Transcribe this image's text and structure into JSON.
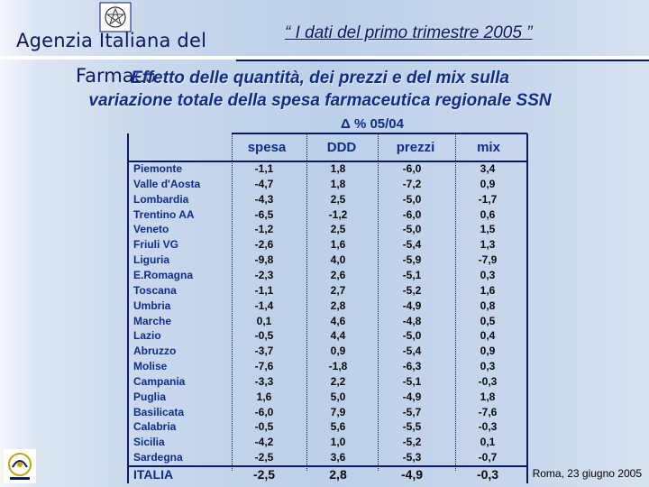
{
  "header": {
    "agency_line1": "Agenzia Italiana del",
    "agency_line2": "Farmaco",
    "presentation_title": "“ I dati del primo trimestre 2005 ”"
  },
  "slide": {
    "title_line1": "Effetto delle quantità, dei prezzi e del mix sulla",
    "title_line2": "variazione totale della spesa farmaceutica regionale SSN",
    "delta_label": "Δ % 05/04"
  },
  "table": {
    "columns": [
      "spesa",
      "DDD",
      "prezzi",
      "mix"
    ],
    "rows": [
      {
        "region": "Piemonte",
        "values": [
          "-1,1",
          "1,8",
          "-6,0",
          "3,4"
        ]
      },
      {
        "region": "Valle d'Aosta",
        "values": [
          "-4,7",
          "1,8",
          "-7,2",
          "0,9"
        ]
      },
      {
        "region": "Lombardia",
        "values": [
          "-4,3",
          "2,5",
          "-5,0",
          "-1,7"
        ]
      },
      {
        "region": "Trentino AA",
        "values": [
          "-6,5",
          "-1,2",
          "-6,0",
          "0,6"
        ]
      },
      {
        "region": "Veneto",
        "values": [
          "-1,2",
          "2,5",
          "-5,0",
          "1,5"
        ]
      },
      {
        "region": "Friuli VG",
        "values": [
          "-2,6",
          "1,6",
          "-5,4",
          "1,3"
        ]
      },
      {
        "region": "Liguria",
        "values": [
          "-9,8",
          "4,0",
          "-5,9",
          "-7,9"
        ]
      },
      {
        "region": "E.Romagna",
        "values": [
          "-2,3",
          "2,6",
          "-5,1",
          "0,3"
        ]
      },
      {
        "region": "Toscana",
        "values": [
          "-1,1",
          "2,7",
          "-5,2",
          "1,6"
        ]
      },
      {
        "region": "Umbria",
        "values": [
          "-1,4",
          "2,8",
          "-4,9",
          "0,8"
        ]
      },
      {
        "region": "Marche",
        "values": [
          "0,1",
          "4,6",
          "-4,8",
          "0,5"
        ]
      },
      {
        "region": "Lazio",
        "values": [
          "-0,5",
          "4,4",
          "-5,0",
          "0,4"
        ]
      },
      {
        "region": "Abruzzo",
        "values": [
          "-3,7",
          "0,9",
          "-5,4",
          "0,9"
        ]
      },
      {
        "region": "Molise",
        "values": [
          "-7,6",
          "-1,8",
          "-6,3",
          "0,3"
        ]
      },
      {
        "region": "Campania",
        "values": [
          "-3,3",
          "2,2",
          "-5,1",
          "-0,3"
        ]
      },
      {
        "region": "Puglia",
        "values": [
          "1,6",
          "5,0",
          "-4,9",
          "1,8"
        ]
      },
      {
        "region": "Basilicata",
        "values": [
          "-6,0",
          "7,9",
          "-5,7",
          "-7,6"
        ]
      },
      {
        "region": "Calabria",
        "values": [
          "-0,5",
          "5,6",
          "-5,5",
          "-0,3"
        ]
      },
      {
        "region": "Sicilia",
        "values": [
          "-4,2",
          "1,0",
          "-5,2",
          "0,1"
        ]
      },
      {
        "region": "Sardegna",
        "values": [
          "-2,5",
          "3,6",
          "-5,3",
          "-0,7"
        ]
      }
    ],
    "total": {
      "region": "ITALIA",
      "values": [
        "-2,5",
        "2,8",
        "-4,9",
        "-0,3"
      ]
    }
  },
  "footer": {
    "date_place": "Roma, 23 giugno 2005"
  },
  "icons": {
    "emblem": "italian-republic-emblem-icon",
    "logo": "aifa-logo-icon"
  }
}
